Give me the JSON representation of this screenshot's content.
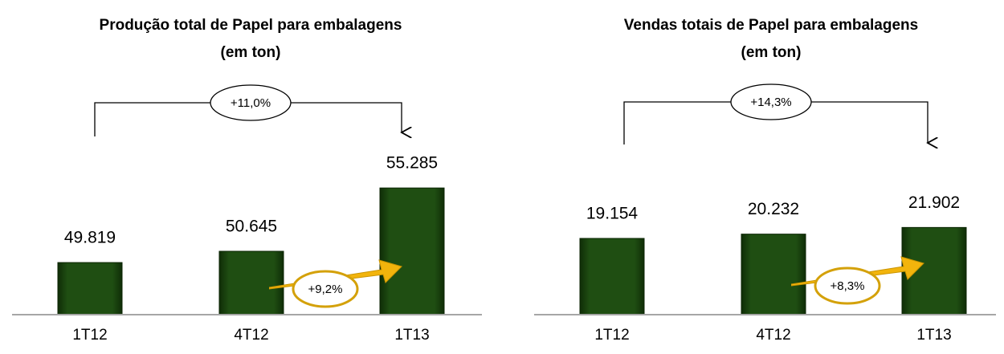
{
  "chart_data": [
    {
      "type": "bar",
      "title": "Produção total de Papel para embalagens",
      "subtitle": "(em ton)",
      "categories": [
        "1T12",
        "4T12",
        "1T13"
      ],
      "values": [
        49819,
        50645,
        55285
      ],
      "value_labels": [
        "49.819",
        "50.645",
        "55.285"
      ],
      "color": "#1f4e12",
      "ylim": [
        46000,
        60000
      ],
      "annotations": [
        "+11,0%",
        "+9,2%"
      ]
    },
    {
      "type": "bar",
      "title": "Vendas totais de Papel para embalagens",
      "subtitle": "(em ton)",
      "categories": [
        "1T12",
        "4T12",
        "1T13"
      ],
      "values": [
        19154,
        20232,
        21902
      ],
      "value_labels": [
        "19.154",
        "20.232",
        "21.902"
      ],
      "color": "#1f4e12",
      "ylim": [
        0,
        50000
      ],
      "annotations": [
        "+14,3%",
        "+8,3%"
      ]
    }
  ]
}
